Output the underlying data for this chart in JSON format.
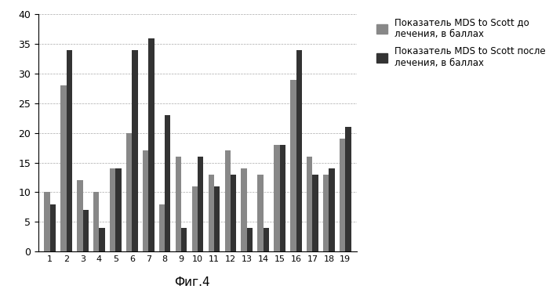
{
  "categories": [
    1,
    2,
    3,
    4,
    5,
    6,
    7,
    8,
    9,
    10,
    11,
    12,
    13,
    14,
    15,
    16,
    17,
    18,
    19
  ],
  "before": [
    10,
    28,
    12,
    10,
    14,
    20,
    17,
    8,
    16,
    11,
    13,
    17,
    14,
    13,
    18,
    29,
    16,
    13,
    19
  ],
  "after": [
    8,
    34,
    7,
    4,
    14,
    34,
    36,
    23,
    4,
    16,
    11,
    13,
    4,
    4,
    18,
    34,
    13,
    14,
    21
  ],
  "color_before": "#888888",
  "color_after": "#333333",
  "ylim": [
    0,
    40
  ],
  "yticks": [
    0,
    5,
    10,
    15,
    20,
    25,
    30,
    35,
    40
  ],
  "legend_label_before": "Показатель MDS to Scott до\nлечения, в баллах",
  "legend_label_after": "Показатель MDS to Scott после\nлечения, в баллах",
  "caption": "Фиг.4",
  "caption_fontsize": 11,
  "bar_width": 0.35,
  "figsize": [
    7.0,
    3.69
  ],
  "dpi": 100
}
